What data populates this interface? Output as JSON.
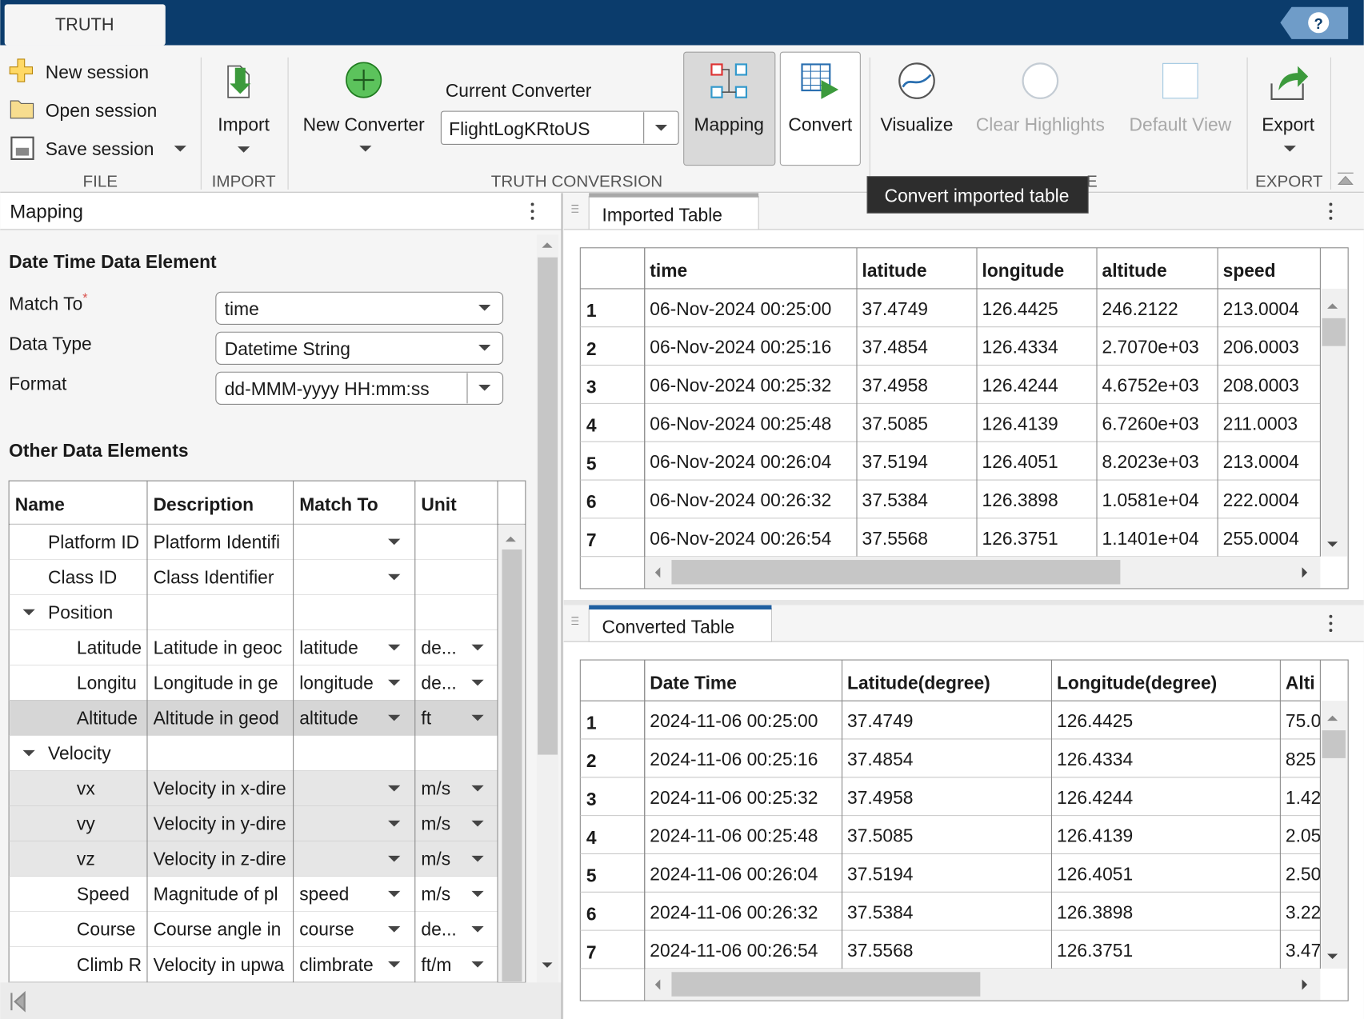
{
  "tab": "TRUTH",
  "help": "?",
  "toolstrip": {
    "file": {
      "items": [
        "New session",
        "Open session",
        "Save session"
      ],
      "label": "FILE"
    },
    "import": {
      "button": "Import",
      "label": "IMPORT"
    },
    "conversion": {
      "new_converter": "New Converter",
      "current_converter_label": "Current Converter",
      "current_converter": "FlightLogKRtoUS",
      "mapping": "Mapping",
      "convert": "Convert",
      "label": "TRUTH CONVERSION"
    },
    "view": {
      "items": [
        "Visualize",
        "Clear Highlights",
        "Default View"
      ],
      "disabled": [
        false,
        true,
        true
      ],
      "label": "E"
    },
    "export": {
      "button": "Export",
      "label": "EXPORT"
    }
  },
  "tooltip": "Convert imported table",
  "mapping_panel": {
    "title": "Mapping",
    "date_time": {
      "heading": "Date Time Data Element",
      "fields": [
        {
          "label": "Match To",
          "required_mark": "*",
          "value": "time"
        },
        {
          "label": "Data Type",
          "value": "Datetime String"
        },
        {
          "label": "Format",
          "value": "dd-MMM-yyyy HH:mm:ss"
        }
      ]
    },
    "other": {
      "heading": "Other Data Elements",
      "columns": [
        "Name",
        "Description",
        "Match To",
        "Unit"
      ],
      "rows": [
        {
          "name": "Platform ID",
          "description": "Platform Identifi",
          "match_to": null,
          "unit": null
        },
        {
          "name": "Class ID",
          "description": "Class Identifier",
          "match_to": null,
          "unit": null
        },
        {
          "name": "Position",
          "children": [
            {
              "name": "Latitude",
              "description": "Latitude in geoc",
              "match_to": "latitude",
              "unit": "de..."
            },
            {
              "name": "Longitu",
              "description": "Longitude in ge",
              "match_to": "longitude",
              "unit": "de..."
            },
            {
              "name": "Altitude",
              "description": "Altitude in geod",
              "match_to": "altitude",
              "unit": "ft",
              "selected": true
            }
          ]
        },
        {
          "name": "Velocity",
          "children": [
            {
              "name": "vx",
              "description": "Velocity in x-dire",
              "match_to": null,
              "unit": "m/s",
              "disabled": true
            },
            {
              "name": "vy",
              "description": "Velocity in y-dire",
              "match_to": null,
              "unit": "m/s",
              "disabled": true
            },
            {
              "name": "vz",
              "description": "Velocity in z-dire",
              "match_to": null,
              "unit": "m/s",
              "disabled": true
            },
            {
              "name": "Speed",
              "description": "Magnitude of pl",
              "match_to": "speed",
              "unit": "m/s"
            },
            {
              "name": "Course",
              "description": "Course angle in",
              "match_to": "course",
              "unit": "de..."
            },
            {
              "name": "Climb R",
              "description": "Velocity in upwa",
              "match_to": "climbrate",
              "unit": "ft/m"
            }
          ]
        }
      ]
    }
  },
  "imported_table": {
    "title": "Imported Table",
    "columns": [
      "time",
      "latitude",
      "longitude",
      "altitude",
      "speed"
    ],
    "row_labels": [
      "1",
      "2",
      "3",
      "4",
      "5",
      "6",
      "7"
    ],
    "rows": [
      [
        "06-Nov-2024 00:25:00",
        "37.4749",
        "126.4425",
        "246.2122",
        "213.0004"
      ],
      [
        "06-Nov-2024 00:25:16",
        "37.4854",
        "126.4334",
        "2.7070e+03",
        "206.0003"
      ],
      [
        "06-Nov-2024 00:25:32",
        "37.4958",
        "126.4244",
        "4.6752e+03",
        "208.0003"
      ],
      [
        "06-Nov-2024 00:25:48",
        "37.5085",
        "126.4139",
        "6.7260e+03",
        "211.0003"
      ],
      [
        "06-Nov-2024 00:26:04",
        "37.5194",
        "126.4051",
        "8.2023e+03",
        "213.0004"
      ],
      [
        "06-Nov-2024 00:26:32",
        "37.5384",
        "126.3898",
        "1.0581e+04",
        "222.0004"
      ],
      [
        "06-Nov-2024 00:26:54",
        "37.5568",
        "126.3751",
        "1.1401e+04",
        "255.0004"
      ]
    ]
  },
  "converted_table": {
    "title": "Converted Table",
    "columns": [
      "Date Time",
      "Latitude(degree)",
      "Longitude(degree)",
      "Alti"
    ],
    "row_labels": [
      "1",
      "2",
      "3",
      "4",
      "5",
      "6",
      "7"
    ],
    "rows": [
      [
        "2024-11-06 00:25:00",
        "37.4749",
        "126.4425",
        "75.0"
      ],
      [
        "2024-11-06 00:25:16",
        "37.4854",
        "126.4334",
        "825"
      ],
      [
        "2024-11-06 00:25:32",
        "37.4958",
        "126.4244",
        "1.42"
      ],
      [
        "2024-11-06 00:25:48",
        "37.5085",
        "126.4139",
        "2.05"
      ],
      [
        "2024-11-06 00:26:04",
        "37.5194",
        "126.4051",
        "2.50"
      ],
      [
        "2024-11-06 00:26:32",
        "37.5384",
        "126.3898",
        "3.22"
      ],
      [
        "2024-11-06 00:26:54",
        "37.5568",
        "126.3751",
        "3.47"
      ]
    ]
  }
}
